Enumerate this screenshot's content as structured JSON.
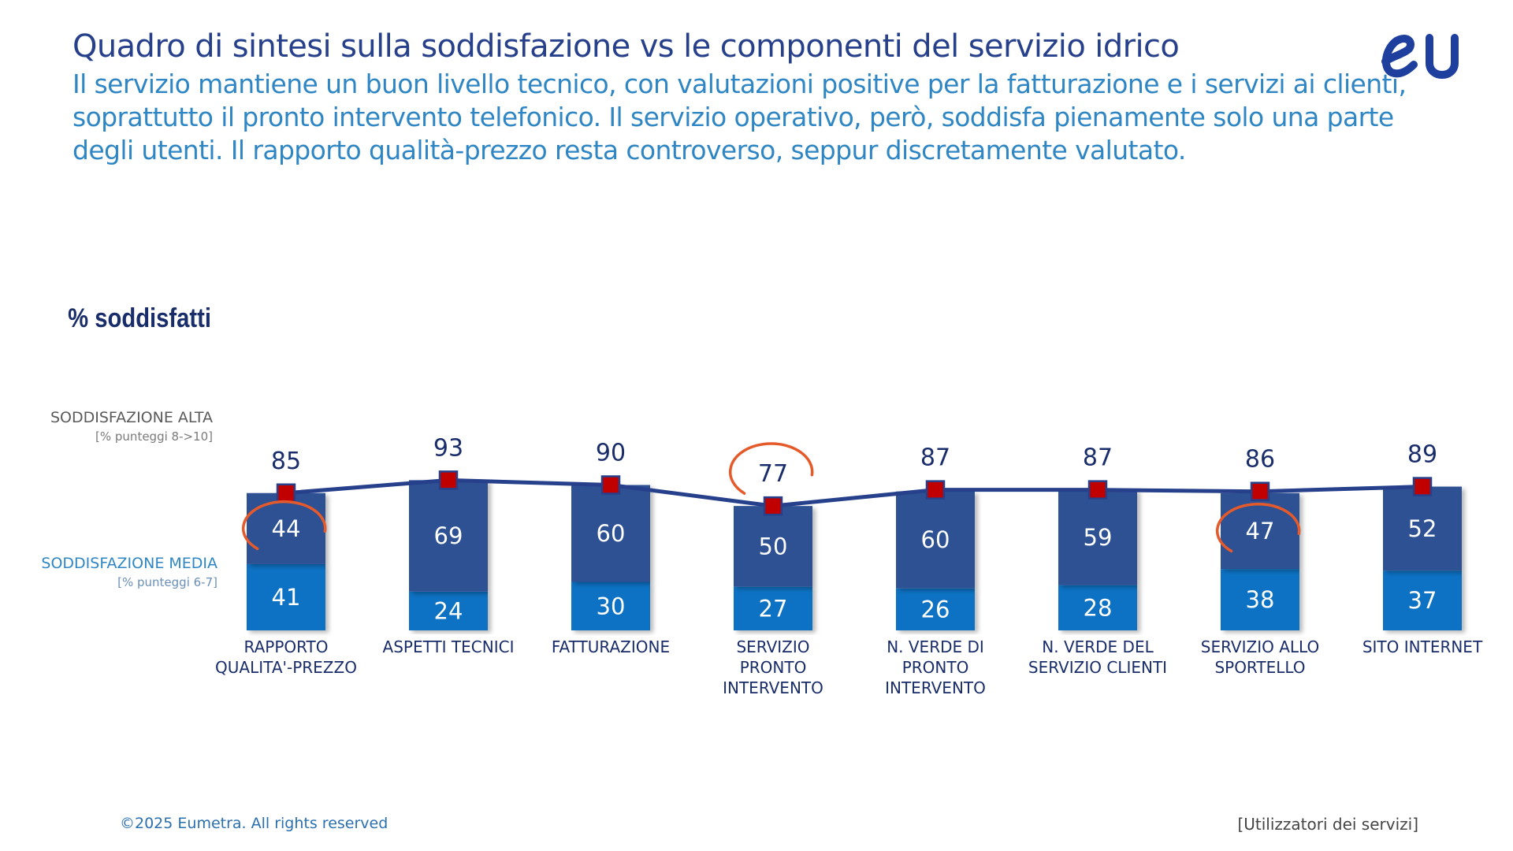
{
  "title": "Quadro di sintesi sulla soddisfazione vs le componenti del servizio idrico",
  "subtitle": "Il servizio mantiene un buon livello tecnico, con valutazioni positive per la fatturazione e i servizi ai clienti, soprattutto il pronto intervento telefonico. Il servizio operativo, però, soddisfa pienamente solo una parte degli utenti. Il rapporto qualità-prezzo resta controverso, seppur discretamente valutato.",
  "logo": {
    "text": "eU"
  },
  "footer": {
    "copyright": "©2025 Eumetra. All rights reserved",
    "base": "[Utilizzatori dei servizi]"
  },
  "colors": {
    "high": "#2d5193",
    "medium": "#0872c4",
    "line": "#27408b",
    "marker": "#c00000",
    "highlight": "#e55a2b",
    "label_dark": "#1a2d6b",
    "label_light": "#2f86c4"
  },
  "chart_data": {
    "type": "bar",
    "stacked": true,
    "categories": [
      [
        "RAPPORTO",
        "QUALITA'-PREZZO"
      ],
      [
        "ASPETTI TECNICI"
      ],
      [
        "FATTURAZIONE"
      ],
      [
        "SERVIZIO",
        "PRONTO",
        "INTERVENTO"
      ],
      [
        "N. VERDE DI",
        "PRONTO",
        "INTERVENTO"
      ],
      [
        "N. VERDE DEL",
        "SERVIZIO CLIENTI"
      ],
      [
        "SERVIZIO ALLO",
        "SPORTELLO"
      ],
      [
        "SITO INTERNET"
      ]
    ],
    "series": [
      {
        "name": "SODDISFAZIONE MEDIA",
        "note": "[% punteggi 6-7]",
        "values": [
          41,
          24,
          30,
          27,
          26,
          28,
          38,
          37
        ]
      },
      {
        "name": "SODDISFAZIONE ALTA",
        "note": "[% punteggi 8->10]",
        "values": [
          44,
          69,
          60,
          50,
          60,
          59,
          47,
          52
        ]
      }
    ],
    "line": {
      "name": "% soddisfatti",
      "values": [
        85,
        93,
        90,
        77,
        87,
        87,
        86,
        89
      ]
    },
    "highlighted_high": [
      0,
      6
    ],
    "highlighted_total": [
      3
    ]
  }
}
